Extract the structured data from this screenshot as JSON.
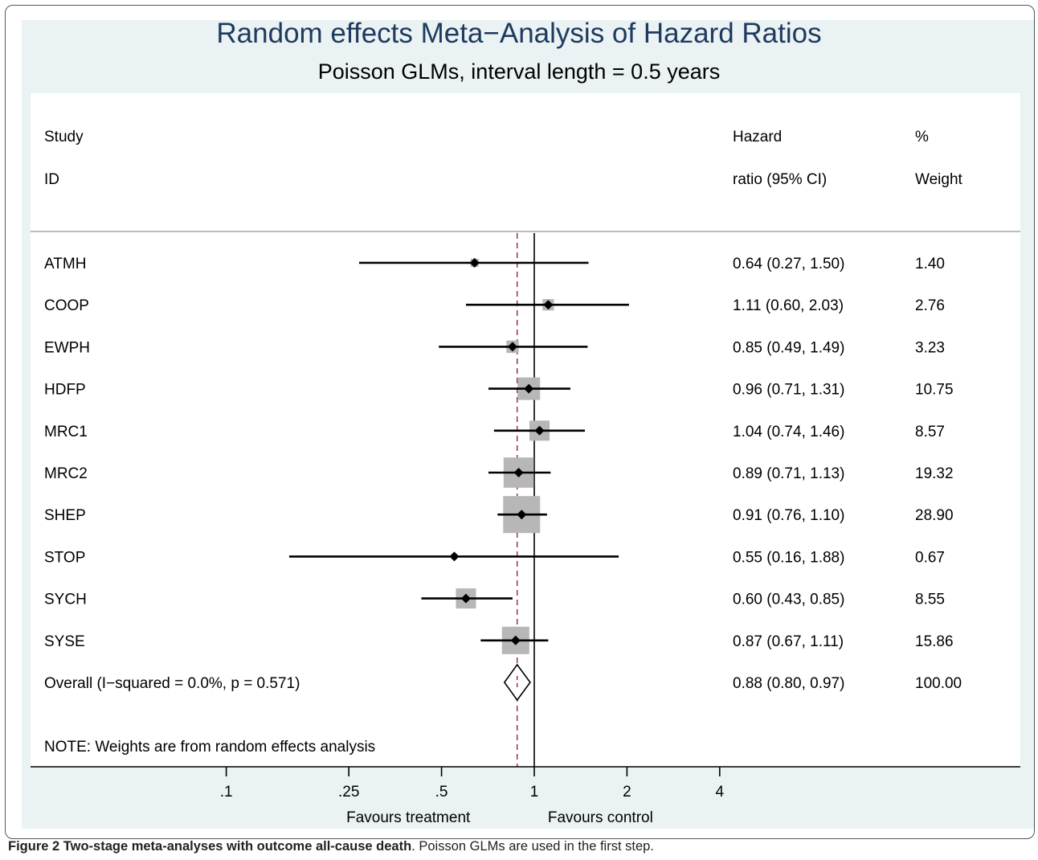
{
  "title": "Random effects Meta−Analysis of Hazard Ratios",
  "subtitle": "Poisson GLMs, interval length = 0.5 years",
  "caption": {
    "figure_label": "Figure 2 Two-stage meta-analyses with outcome all-cause death",
    "text": ". Poisson GLMs are used in the first step."
  },
  "chart_data": {
    "type": "forest",
    "scale": "log",
    "headers": {
      "study_line1": "Study",
      "study_line2": "ID",
      "hr_line1": "Hazard",
      "hr_line2": "ratio (95% CI)",
      "weight_line1": "%",
      "weight_line2": "Weight"
    },
    "studies": [
      {
        "id": "ATMH",
        "hr": 0.64,
        "lo": 0.27,
        "hi": 1.5,
        "label": "0.64 (0.27, 1.50)",
        "weight": 1.4,
        "weight_label": "1.40"
      },
      {
        "id": "COOP",
        "hr": 1.11,
        "lo": 0.6,
        "hi": 2.03,
        "label": "1.11 (0.60, 2.03)",
        "weight": 2.76,
        "weight_label": "2.76"
      },
      {
        "id": "EWPH",
        "hr": 0.85,
        "lo": 0.49,
        "hi": 1.49,
        "label": "0.85 (0.49, 1.49)",
        "weight": 3.23,
        "weight_label": "3.23"
      },
      {
        "id": "HDFP",
        "hr": 0.96,
        "lo": 0.71,
        "hi": 1.31,
        "label": "0.96 (0.71, 1.31)",
        "weight": 10.75,
        "weight_label": "10.75"
      },
      {
        "id": "MRC1",
        "hr": 1.04,
        "lo": 0.74,
        "hi": 1.46,
        "label": "1.04 (0.74, 1.46)",
        "weight": 8.57,
        "weight_label": "8.57"
      },
      {
        "id": "MRC2",
        "hr": 0.89,
        "lo": 0.71,
        "hi": 1.13,
        "label": "0.89 (0.71, 1.13)",
        "weight": 19.32,
        "weight_label": "19.32"
      },
      {
        "id": "SHEP",
        "hr": 0.91,
        "lo": 0.76,
        "hi": 1.1,
        "label": "0.91 (0.76, 1.10)",
        "weight": 28.9,
        "weight_label": "28.90"
      },
      {
        "id": "STOP",
        "hr": 0.55,
        "lo": 0.16,
        "hi": 1.88,
        "label": "0.55 (0.16, 1.88)",
        "weight": 0.67,
        "weight_label": "0.67"
      },
      {
        "id": "SYCH",
        "hr": 0.6,
        "lo": 0.43,
        "hi": 0.85,
        "label": "0.60 (0.43, 0.85)",
        "weight": 8.55,
        "weight_label": "8.55"
      },
      {
        "id": "SYSE",
        "hr": 0.87,
        "lo": 0.67,
        "hi": 1.11,
        "label": "0.87 (0.67, 1.11)",
        "weight": 15.86,
        "weight_label": "15.86"
      }
    ],
    "overall": {
      "id": "Overall  (I−squared = 0.0%, p = 0.571)",
      "hr": 0.88,
      "lo": 0.8,
      "hi": 0.97,
      "label": "0.88 (0.80, 0.97)",
      "weight_label": "100.00"
    },
    "note": "NOTE: Weights are from random effects analysis",
    "x_ticks": [
      {
        "value": 0.1,
        "label": ".1"
      },
      {
        "value": 0.25,
        "label": ".25"
      },
      {
        "value": 0.5,
        "label": ".5"
      },
      {
        "value": 1,
        "label": "1"
      },
      {
        "value": 2,
        "label": "2"
      },
      {
        "value": 4,
        "label": "4"
      }
    ],
    "null_value": 1,
    "x_left_label": "Favours treatment",
    "x_right_label": "Favours control",
    "colors": {
      "box": "#b7b7b7",
      "ref_line": "#8b2b3a",
      "title": "#1e3a5f"
    }
  }
}
